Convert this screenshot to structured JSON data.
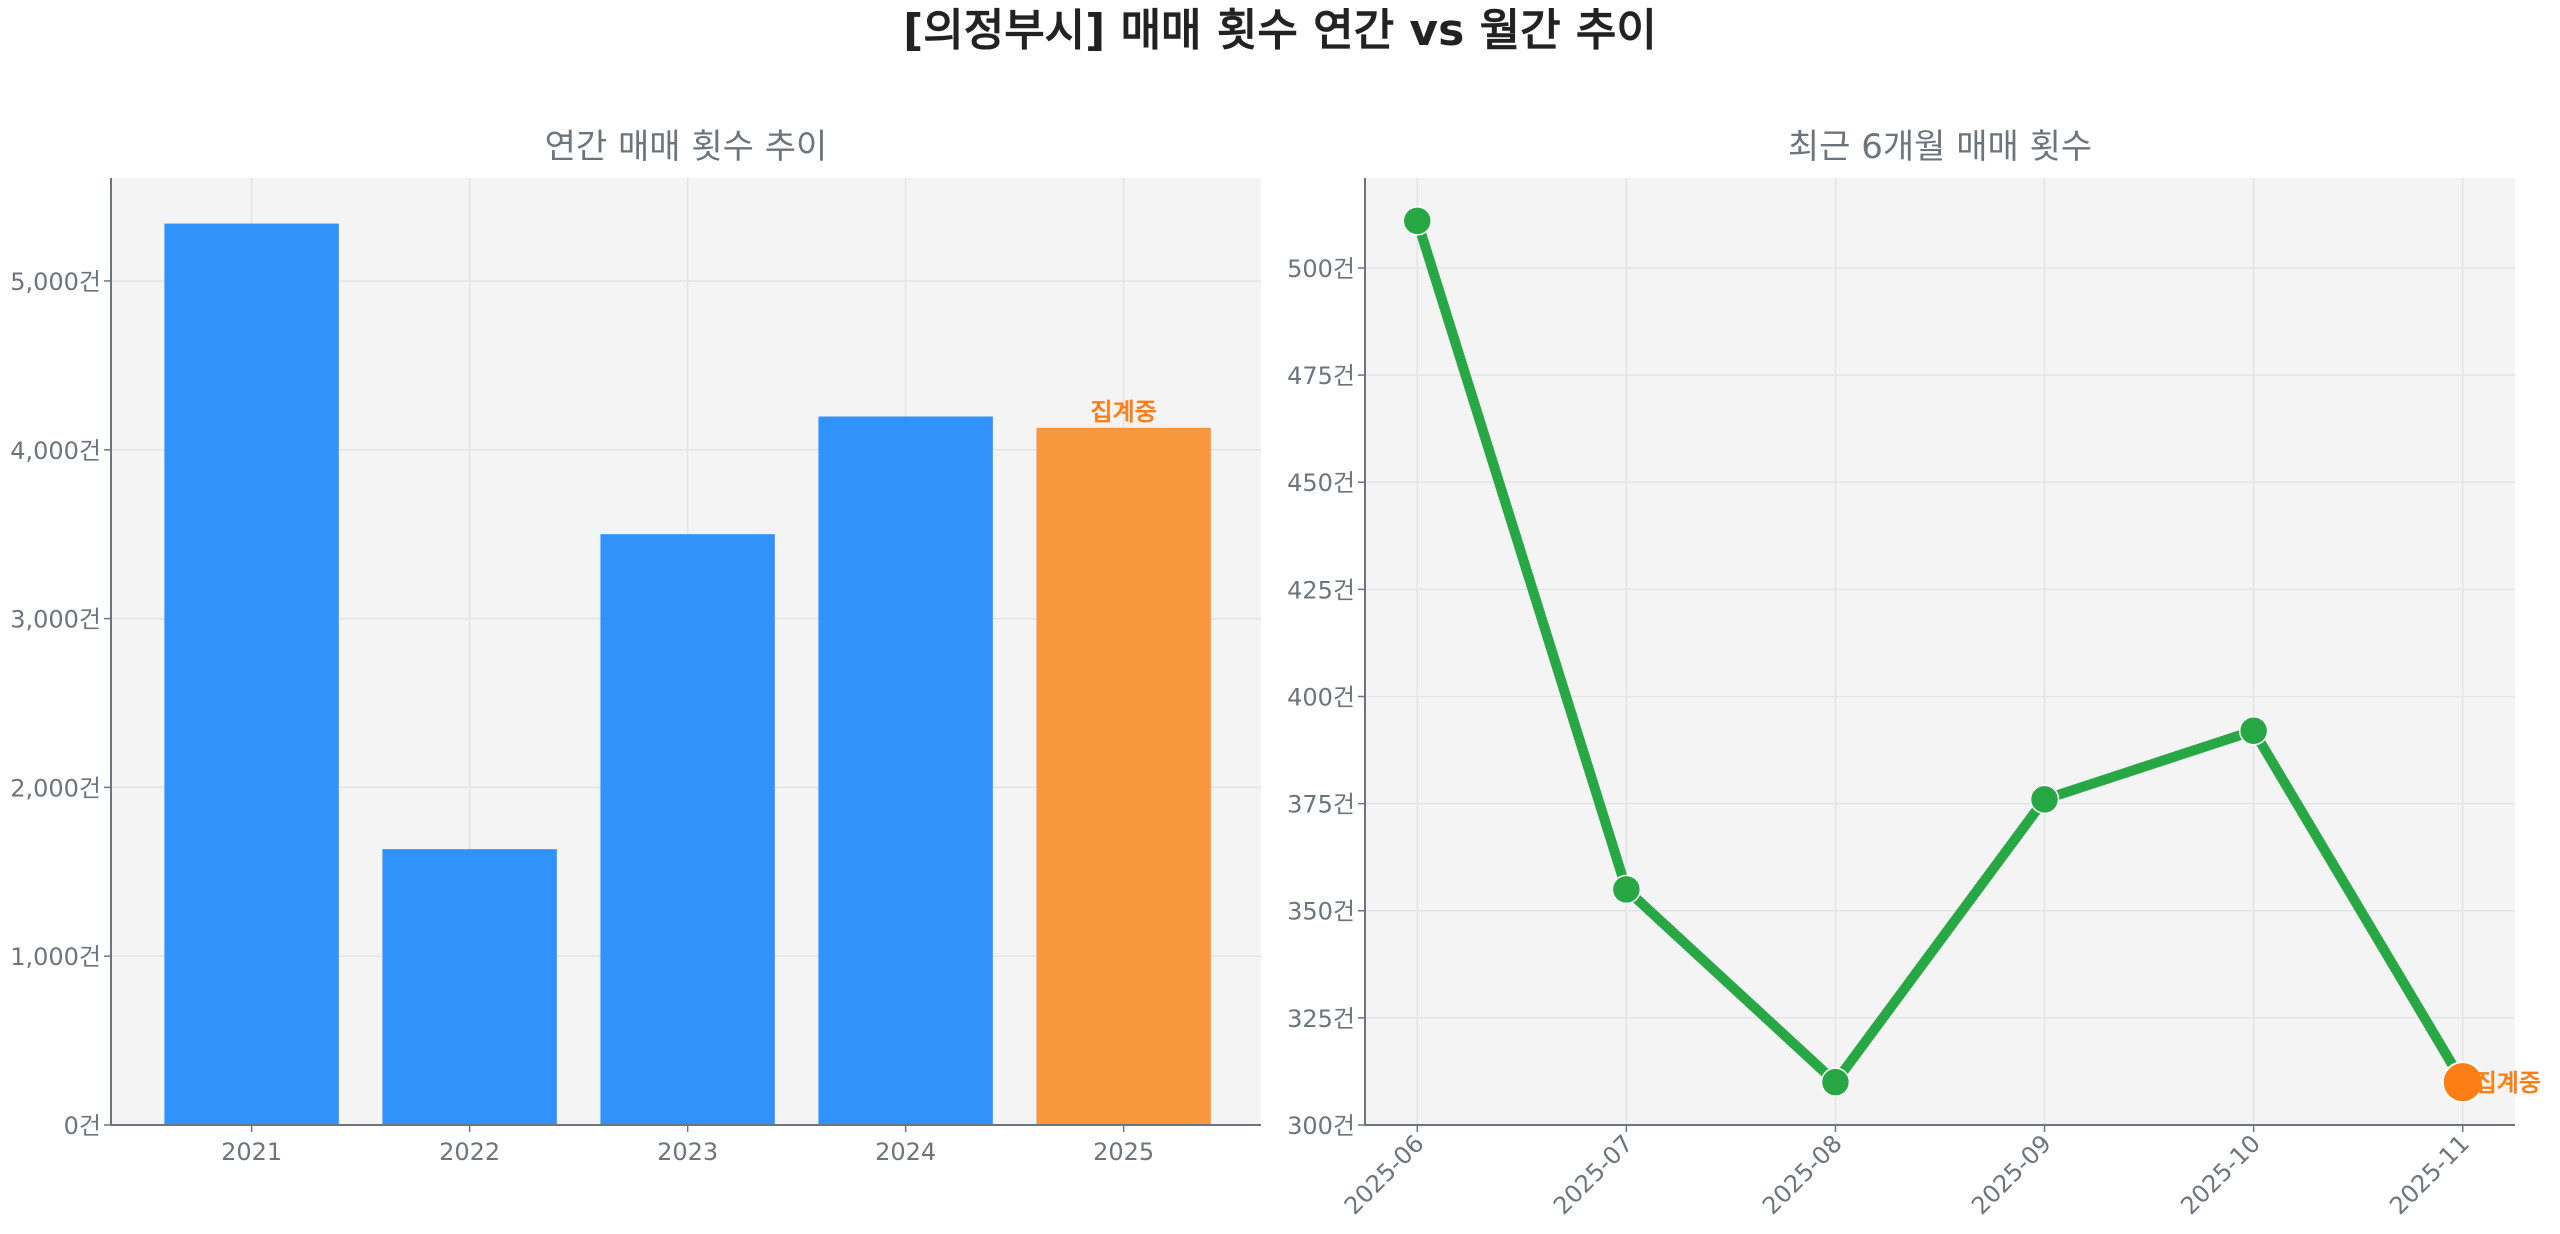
{
  "title": "[의정부시] 매매 횟수 연간 vs 월간 추이",
  "chart_data": [
    {
      "type": "bar",
      "title": "연간 매매 횟수 추이",
      "categories": [
        "2021",
        "2022",
        "2023",
        "2024",
        "2025"
      ],
      "values": [
        5340,
        1634,
        3500,
        4197,
        4130
      ],
      "ylim": [
        0,
        5610
      ],
      "yticks": [
        0,
        1000,
        2000,
        3000,
        4000,
        5000
      ],
      "ytick_labels": [
        "0건",
        "1,000건",
        "2,000건",
        "3,000건",
        "4,000건",
        "5,000건"
      ],
      "grid": true,
      "colors": [
        "#3092fa",
        "#3092fa",
        "#3092fa",
        "#3092fa",
        "#f9973f"
      ],
      "annotation": {
        "category": "2025",
        "text": "집계중"
      }
    },
    {
      "type": "line",
      "title": "최근 6개월 매매 횟수",
      "categories": [
        "2025-06",
        "2025-07",
        "2025-08",
        "2025-09",
        "2025-10",
        "2025-11"
      ],
      "values": [
        511,
        355,
        310,
        376,
        392,
        310
      ],
      "ylim": [
        300,
        521
      ],
      "yticks": [
        300,
        325,
        350,
        375,
        400,
        425,
        450,
        475,
        500
      ],
      "ytick_labels": [
        "300건",
        "325건",
        "350건",
        "375건",
        "400건",
        "425건",
        "450건",
        "475건",
        "500건"
      ],
      "grid": true,
      "line_color": "#28a745",
      "highlight_color": "#fd7e14",
      "annotation": {
        "category": "2025-11",
        "text": "집계중"
      }
    }
  ]
}
